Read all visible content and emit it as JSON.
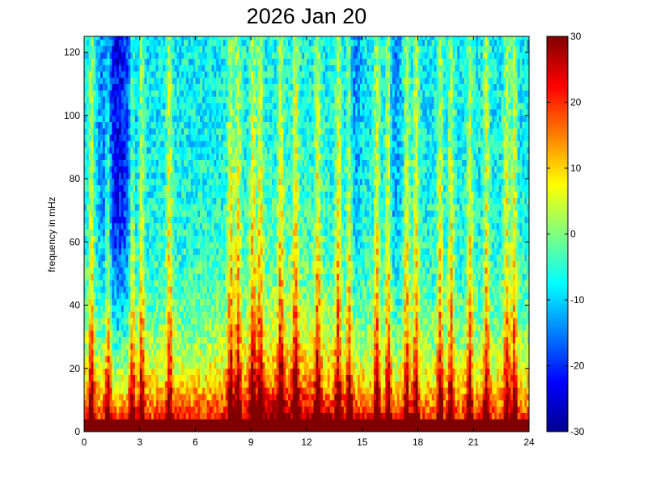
{
  "chart_data": {
    "type": "heatmap",
    "title": "2026 Jan 20",
    "xlabel": "",
    "ylabel": "frequency in mHz",
    "xlim": [
      0,
      24
    ],
    "ylim": [
      0,
      125
    ],
    "xticks": [
      0,
      3,
      6,
      9,
      12,
      15,
      18,
      21,
      24
    ],
    "yticks": [
      0,
      20,
      40,
      60,
      80,
      100,
      120
    ],
    "colorbar": {
      "colormap": "jet",
      "range": [
        -30,
        30
      ],
      "ticks": [
        -30,
        -20,
        -10,
        0,
        10,
        20,
        30
      ]
    },
    "time_bins_hours": 0.125,
    "freq_bins_mhz": 2,
    "event_hours": [
      0.4,
      1.3,
      2.6,
      3.1,
      4.6,
      7.9,
      8.3,
      9.1,
      9.5,
      10.6,
      11.4,
      12.6,
      13.7,
      14.3,
      15.8,
      16.4,
      17.4,
      17.9,
      19.2,
      19.8,
      20.8,
      21.7,
      22.8,
      23.2
    ],
    "colors": {
      "background": "#ffffff",
      "axes": "#000000"
    }
  }
}
